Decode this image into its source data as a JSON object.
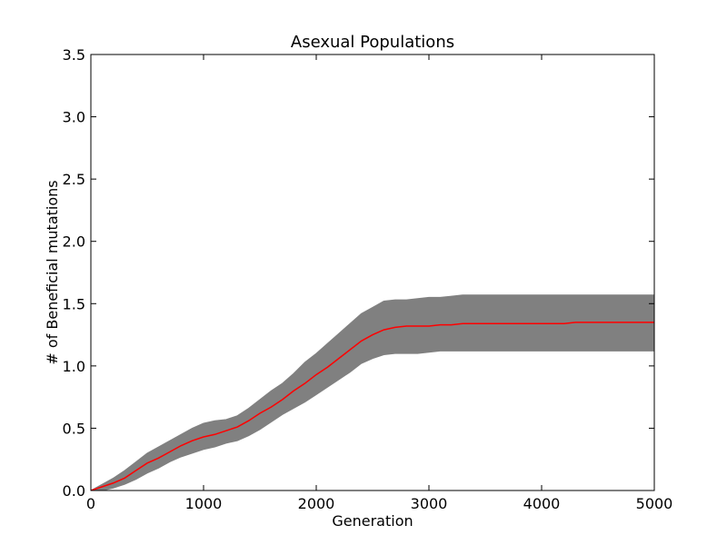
{
  "chart_data": {
    "type": "area",
    "title": "Asexual Populations",
    "xlabel": "Generation",
    "ylabel": "# of Beneficial mutations",
    "xlim": [
      0,
      5000
    ],
    "ylim": [
      0,
      3.5
    ],
    "xticks": [
      0,
      1000,
      2000,
      3000,
      4000,
      5000
    ],
    "yticks": [
      0.0,
      0.5,
      1.0,
      1.5,
      2.0,
      2.5,
      3.0,
      3.5
    ],
    "xtick_labels": [
      "0",
      "1000",
      "2000",
      "3000",
      "4000",
      "5000"
    ],
    "ytick_labels": [
      "0.0",
      "0.5",
      "1.0",
      "1.5",
      "2.0",
      "2.5",
      "3.0",
      "3.5"
    ],
    "grid": false,
    "legend": "none",
    "series": [
      {
        "kind": "band",
        "color": "#808080",
        "x": [
          0,
          100,
          200,
          300,
          400,
          500,
          600,
          700,
          800,
          900,
          1000,
          1100,
          1200,
          1300,
          1400,
          1500,
          1600,
          1700,
          1800,
          1900,
          2000,
          2100,
          2200,
          2300,
          2400,
          2500,
          2600,
          2700,
          2800,
          2900,
          3000,
          3100,
          3200,
          3300,
          3400,
          3500,
          3600,
          3700,
          3800,
          3900,
          4000,
          4100,
          4200,
          4300,
          4400,
          4500,
          4600,
          4700,
          4800,
          4900,
          5000
        ],
        "upper": [
          0.0,
          0.05,
          0.1,
          0.16,
          0.23,
          0.3,
          0.35,
          0.4,
          0.45,
          0.5,
          0.54,
          0.56,
          0.57,
          0.6,
          0.66,
          0.73,
          0.8,
          0.86,
          0.94,
          1.03,
          1.1,
          1.18,
          1.26,
          1.34,
          1.42,
          1.47,
          1.52,
          1.53,
          1.53,
          1.54,
          1.55,
          1.55,
          1.56,
          1.57,
          1.57,
          1.57,
          1.57,
          1.57,
          1.57,
          1.57,
          1.57,
          1.57,
          1.57,
          1.57,
          1.57,
          1.57,
          1.57,
          1.57,
          1.57,
          1.57,
          1.57
        ],
        "lower": [
          0.0,
          0.0,
          0.02,
          0.05,
          0.09,
          0.14,
          0.18,
          0.23,
          0.27,
          0.3,
          0.33,
          0.35,
          0.38,
          0.4,
          0.44,
          0.49,
          0.55,
          0.61,
          0.66,
          0.71,
          0.77,
          0.83,
          0.89,
          0.95,
          1.02,
          1.06,
          1.09,
          1.1,
          1.1,
          1.1,
          1.11,
          1.12,
          1.12,
          1.12,
          1.12,
          1.12,
          1.12,
          1.12,
          1.12,
          1.12,
          1.12,
          1.12,
          1.12,
          1.12,
          1.12,
          1.12,
          1.12,
          1.12,
          1.12,
          1.12,
          1.12
        ]
      },
      {
        "kind": "line",
        "color": "#ff0000",
        "x": [
          0,
          100,
          200,
          300,
          400,
          500,
          600,
          700,
          800,
          900,
          1000,
          1100,
          1200,
          1300,
          1400,
          1500,
          1600,
          1700,
          1800,
          1900,
          2000,
          2100,
          2200,
          2300,
          2400,
          2500,
          2600,
          2700,
          2800,
          2900,
          3000,
          3100,
          3200,
          3300,
          3400,
          3500,
          3600,
          3700,
          3800,
          3900,
          4000,
          4100,
          4200,
          4300,
          4400,
          4500,
          4600,
          4700,
          4800,
          4900,
          5000
        ],
        "values": [
          0.0,
          0.03,
          0.06,
          0.1,
          0.16,
          0.22,
          0.26,
          0.31,
          0.36,
          0.4,
          0.43,
          0.45,
          0.48,
          0.51,
          0.56,
          0.62,
          0.67,
          0.73,
          0.8,
          0.86,
          0.93,
          0.99,
          1.06,
          1.13,
          1.2,
          1.25,
          1.29,
          1.31,
          1.32,
          1.32,
          1.32,
          1.33,
          1.33,
          1.34,
          1.34,
          1.34,
          1.34,
          1.34,
          1.34,
          1.34,
          1.34,
          1.34,
          1.34,
          1.35,
          1.35,
          1.35,
          1.35,
          1.35,
          1.35,
          1.35,
          1.35
        ]
      }
    ]
  }
}
